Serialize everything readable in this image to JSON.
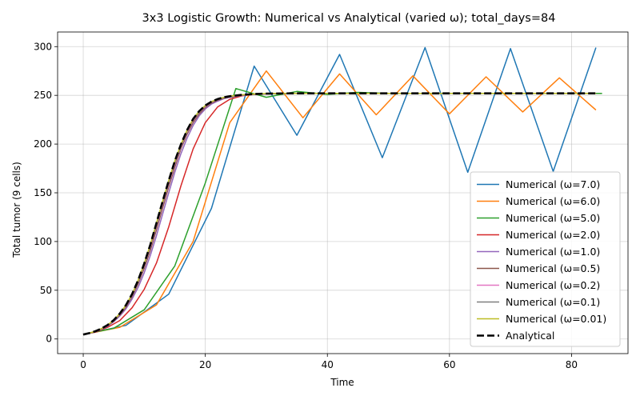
{
  "chart_data": {
    "type": "line",
    "title": "3x3 Logistic Growth: Numerical vs Analytical (varied ω); total_days=84",
    "xlabel": "Time",
    "ylabel": "Total tumor (9 cells)",
    "xlim": [
      -4.2,
      89.25
    ],
    "ylim": [
      -15,
      315
    ],
    "xticks": [
      0,
      20,
      40,
      60,
      80
    ],
    "yticks": [
      0,
      50,
      100,
      150,
      200,
      250,
      300
    ],
    "grid": true,
    "legend_position": "lower right",
    "series": [
      {
        "name": "Numerical (ω=7.0)",
        "color": "#1f77b4",
        "x": [
          0,
          7,
          14,
          21,
          28,
          35,
          42,
          49,
          56,
          63,
          70,
          77,
          84
        ],
        "y": [
          4.5,
          14,
          46,
          134,
          280,
          209,
          292,
          186,
          299,
          171,
          298,
          172,
          299
        ]
      },
      {
        "name": "Numerical (ω=6.0)",
        "color": "#ff7f0e",
        "x": [
          0,
          6,
          12,
          18,
          24,
          30,
          36,
          42,
          48,
          54,
          60,
          66,
          72,
          78,
          84
        ],
        "y": [
          4.5,
          12,
          35,
          100,
          222,
          275,
          227,
          272,
          230,
          270,
          231,
          269,
          233,
          268,
          235
        ]
      },
      {
        "name": "Numerical (ω=5.0)",
        "color": "#2ca02c",
        "x": [
          0,
          5,
          10,
          15,
          20,
          25,
          30,
          35,
          40,
          45,
          50,
          55,
          60,
          65,
          70,
          75,
          80,
          85
        ],
        "y": [
          4.5,
          11,
          30,
          75,
          160,
          257,
          248,
          254,
          251,
          253,
          252,
          252,
          252,
          252,
          252,
          252,
          252,
          252
        ]
      },
      {
        "name": "Numerical (ω=2.0)",
        "color": "#d62728",
        "x": [
          0,
          2,
          4,
          6,
          8,
          10,
          12,
          14,
          16,
          18,
          20,
          22,
          24,
          26,
          28,
          30,
          32,
          34,
          36,
          38,
          40,
          42,
          44,
          46,
          48,
          50,
          52,
          54,
          56,
          58,
          60,
          62,
          64,
          66,
          68,
          70,
          72,
          74,
          76,
          78,
          80,
          82,
          84
        ],
        "y": [
          4.5,
          7,
          12,
          19,
          32,
          51,
          78,
          115,
          157,
          195,
          222,
          238,
          246,
          249.5,
          251,
          251.5,
          251.8,
          252,
          252,
          252,
          252,
          252,
          252,
          252,
          252,
          252,
          252,
          252,
          252,
          252,
          252,
          252,
          252,
          252,
          252,
          252,
          252,
          252,
          252,
          252,
          252,
          252,
          252
        ]
      },
      {
        "name": "Numerical (ω=1.0)",
        "color": "#9467bd",
        "x": [
          0,
          1,
          2,
          3,
          4,
          5,
          6,
          7,
          8,
          9,
          10,
          11,
          12,
          13,
          14,
          15,
          16,
          17,
          18,
          19,
          20,
          21,
          22,
          23,
          24,
          26,
          28,
          30,
          34,
          40,
          50,
          60,
          70,
          84
        ],
        "y": [
          4.5,
          5.6,
          7.4,
          9.9,
          13.2,
          17.7,
          23.6,
          31,
          41,
          53,
          68,
          86,
          106,
          128,
          150,
          171,
          190,
          206,
          219,
          229,
          236,
          241,
          244,
          246.5,
          248,
          250,
          251,
          251.5,
          252,
          252,
          252,
          252,
          252,
          252
        ]
      },
      {
        "name": "Numerical (ω=0.5)",
        "color": "#8c564b",
        "x": [
          0,
          1,
          2,
          3,
          4,
          5,
          6,
          7,
          8,
          9,
          10,
          11,
          12,
          13,
          14,
          15,
          16,
          17,
          18,
          19,
          20,
          21,
          22,
          23,
          24,
          26,
          28,
          30,
          34,
          40,
          50,
          60,
          70,
          84
        ],
        "y": [
          4.5,
          5.8,
          7.6,
          10.2,
          13.7,
          18.4,
          24.7,
          32.8,
          43.4,
          56.6,
          72.5,
          91,
          112,
          134,
          156,
          176,
          195,
          210,
          222,
          231,
          237.5,
          242,
          245,
          247,
          248.5,
          250.2,
          251,
          251.6,
          252,
          252,
          252,
          252,
          252,
          252
        ]
      },
      {
        "name": "Numerical (ω=0.2)",
        "color": "#e377c2",
        "x": [
          0,
          1,
          2,
          3,
          4,
          5,
          6,
          7,
          8,
          9,
          10,
          11,
          12,
          13,
          14,
          15,
          16,
          17,
          18,
          19,
          20,
          21,
          22,
          23,
          24,
          26,
          28,
          30,
          34,
          40,
          50,
          60,
          70,
          84
        ],
        "y": [
          4.5,
          5.9,
          7.8,
          10.4,
          14,
          18.9,
          25.4,
          33.8,
          44.8,
          58.5,
          75,
          94,
          115.5,
          137.5,
          159,
          179,
          197,
          212,
          224,
          232.5,
          238.5,
          242.8,
          245.6,
          247.5,
          248.8,
          250.4,
          251.2,
          251.7,
          252,
          252,
          252,
          252,
          252,
          252
        ]
      },
      {
        "name": "Numerical (ω=0.1)",
        "color": "#7f7f7f",
        "x": [
          0,
          1,
          2,
          3,
          4,
          5,
          6,
          7,
          8,
          9,
          10,
          11,
          12,
          13,
          14,
          15,
          16,
          17,
          18,
          19,
          20,
          21,
          22,
          23,
          24,
          26,
          28,
          30,
          34,
          40,
          50,
          60,
          70,
          84
        ],
        "y": [
          4.5,
          5.9,
          7.9,
          10.5,
          14.1,
          19.1,
          25.7,
          34.2,
          45.3,
          59.2,
          76,
          95.3,
          117,
          139,
          160.5,
          180.5,
          198,
          213,
          224.8,
          233,
          239,
          243.1,
          245.8,
          247.7,
          249,
          250.5,
          251.3,
          251.7,
          252,
          252,
          252,
          252,
          252,
          252
        ]
      },
      {
        "name": "Numerical (ω=0.01)",
        "color": "#bcbd22",
        "x": [
          0,
          1,
          2,
          3,
          4,
          5,
          6,
          7,
          8,
          9,
          10,
          11,
          12,
          13,
          14,
          15,
          16,
          17,
          18,
          19,
          20,
          21,
          22,
          23,
          24,
          26,
          28,
          30,
          34,
          40,
          50,
          60,
          70,
          84
        ],
        "y": [
          4.5,
          6,
          8,
          10.7,
          14.4,
          19.4,
          26.1,
          34.8,
          46.1,
          60.3,
          77.4,
          97,
          119,
          141,
          162.5,
          182.5,
          199.5,
          214.2,
          225.8,
          233.8,
          239.6,
          243.5,
          246.1,
          247.9,
          249.1,
          250.6,
          251.4,
          251.8,
          252,
          252,
          252,
          252,
          252,
          252
        ]
      },
      {
        "name": "Analytical",
        "color": "#000000",
        "dashed": true,
        "x": [
          0,
          1,
          2,
          3,
          4,
          5,
          6,
          7,
          8,
          9,
          10,
          11,
          12,
          13,
          14,
          15,
          16,
          17,
          18,
          19,
          20,
          21,
          22,
          23,
          24,
          26,
          28,
          30,
          34,
          40,
          50,
          60,
          70,
          84
        ],
        "y": [
          4.5,
          6,
          8,
          10.7,
          14.4,
          19.4,
          26.1,
          34.8,
          46.1,
          60.3,
          77.4,
          97,
          119,
          141,
          162.5,
          182.5,
          199.5,
          214.2,
          225.8,
          233.8,
          239.6,
          243.5,
          246.1,
          247.9,
          249.1,
          250.6,
          251.4,
          251.8,
          252,
          252,
          252,
          252,
          252,
          252
        ]
      }
    ]
  }
}
